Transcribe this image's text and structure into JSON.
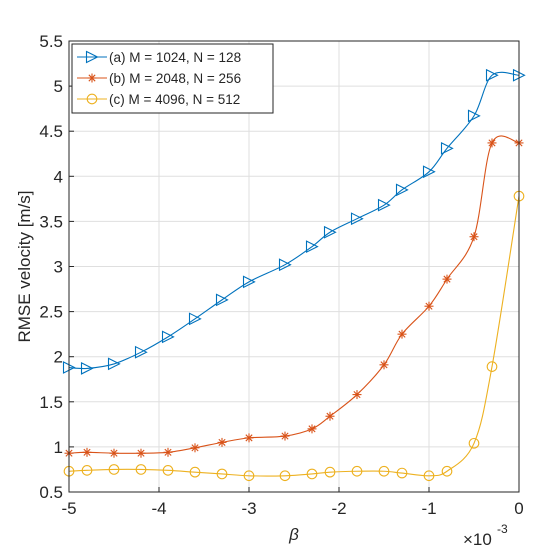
{
  "chart_data": {
    "type": "line",
    "xlabel": "β",
    "ylabel": "RMSE velocity [m/s]",
    "x_exponent_label": "×10",
    "x_exponent_power": "-3",
    "xlim": [
      -5,
      0
    ],
    "ylim": [
      0.5,
      5.5
    ],
    "xticks": [
      "-5",
      "-4",
      "-3",
      "-2",
      "-1",
      "0"
    ],
    "yticks": [
      "0.5",
      "1",
      "1.5",
      "2",
      "2.5",
      "3",
      "3.5",
      "4",
      "4.5",
      "5",
      "5.5"
    ],
    "grid": true,
    "legend_position": "top-left",
    "x": [
      -5.0,
      -4.8,
      -4.5,
      -4.2,
      -3.9,
      -3.6,
      -3.3,
      -3.0,
      -2.6,
      -2.3,
      -2.1,
      -1.8,
      -1.5,
      -1.3,
      -1.0,
      -0.8,
      -0.5,
      -0.3,
      0.0
    ],
    "series": [
      {
        "name": "(a) M = 1024, N = 128",
        "color": "#0072BD",
        "marker": "triangle-right",
        "values": [
          1.88,
          1.87,
          1.92,
          2.05,
          2.22,
          2.42,
          2.63,
          2.83,
          3.02,
          3.22,
          3.38,
          3.53,
          3.68,
          3.85,
          4.05,
          4.31,
          4.67,
          5.12,
          5.12
        ]
      },
      {
        "name": "(b) M = 2048, N = 256",
        "color": "#D95319",
        "marker": "asterisk",
        "values": [
          0.93,
          0.94,
          0.93,
          0.93,
          0.94,
          0.99,
          1.05,
          1.1,
          1.12,
          1.2,
          1.34,
          1.58,
          1.91,
          2.25,
          2.56,
          2.86,
          3.33,
          4.37,
          4.37
        ]
      },
      {
        "name": "(c) M = 4096, N = 512",
        "color": "#EDB120",
        "marker": "circle",
        "values": [
          0.73,
          0.74,
          0.75,
          0.75,
          0.74,
          0.72,
          0.7,
          0.68,
          0.68,
          0.7,
          0.72,
          0.73,
          0.73,
          0.71,
          0.68,
          0.73,
          1.04,
          1.89,
          3.78
        ]
      }
    ]
  }
}
